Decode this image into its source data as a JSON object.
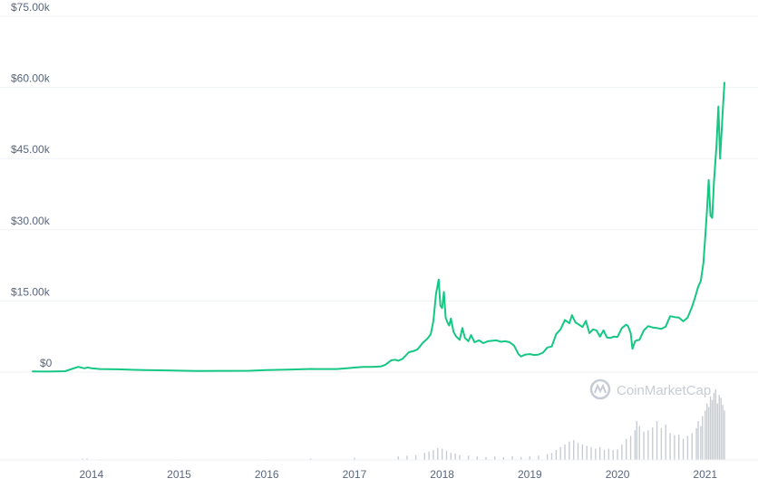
{
  "chart_data": {
    "type": "line",
    "yaxis": {
      "min": 0,
      "max": 75000,
      "ticks": [
        {
          "value": 0,
          "label": "$0"
        },
        {
          "value": 15000,
          "label": "$15.00k"
        },
        {
          "value": 30000,
          "label": "$30.00k"
        },
        {
          "value": 45000,
          "label": "$45.00k"
        },
        {
          "value": 60000,
          "label": "$60.00k"
        },
        {
          "value": 75000,
          "label": "$75.00k"
        }
      ]
    },
    "xaxis": {
      "min": 2013.33,
      "max": 2021.23,
      "ticks": [
        {
          "value": 2014,
          "label": "2014"
        },
        {
          "value": 2015,
          "label": "2015"
        },
        {
          "value": 2016,
          "label": "2016"
        },
        {
          "value": 2017,
          "label": "2017"
        },
        {
          "value": 2018,
          "label": "2018"
        },
        {
          "value": 2019,
          "label": "2019"
        },
        {
          "value": 2020,
          "label": "2020"
        },
        {
          "value": 2021,
          "label": "2021"
        }
      ]
    },
    "grid": true,
    "line_color": "#16c784",
    "series": [
      {
        "x": [
          2013.33,
          2013.5,
          2013.7,
          2013.85,
          2013.92,
          2013.96,
          2014.0,
          2014.1,
          2014.3,
          2014.45,
          2014.6,
          2014.8,
          2015.0,
          2015.2,
          2015.5,
          2015.8,
          2016.0,
          2016.3,
          2016.5,
          2016.6,
          2016.8,
          2017.0,
          2017.1,
          2017.2,
          2017.3,
          2017.35,
          2017.42,
          2017.47,
          2017.5,
          2017.55,
          2017.62,
          2017.67,
          2017.72,
          2017.78,
          2017.83,
          2017.87,
          2017.9,
          2017.93,
          2017.96,
          2017.98,
          2018.0,
          2018.02,
          2018.04,
          2018.06,
          2018.08,
          2018.1,
          2018.13,
          2018.16,
          2018.2,
          2018.23,
          2018.26,
          2018.3,
          2018.33,
          2018.37,
          2018.42,
          2018.47,
          2018.52,
          2018.57,
          2018.62,
          2018.67,
          2018.72,
          2018.77,
          2018.82,
          2018.87,
          2018.9,
          2018.95,
          2019.0,
          2019.05,
          2019.1,
          2019.15,
          2019.2,
          2019.25,
          2019.3,
          2019.35,
          2019.4,
          2019.45,
          2019.48,
          2019.52,
          2019.56,
          2019.6,
          2019.64,
          2019.68,
          2019.72,
          2019.76,
          2019.8,
          2019.84,
          2019.88,
          2019.92,
          2019.96,
          2020.0,
          2020.05,
          2020.1,
          2020.12,
          2020.15,
          2020.17,
          2020.2,
          2020.22,
          2020.25,
          2020.3,
          2020.35,
          2020.4,
          2020.45,
          2020.5,
          2020.55,
          2020.6,
          2020.65,
          2020.7,
          2020.75,
          2020.8,
          2020.85,
          2020.88,
          2020.92,
          2020.95,
          2020.98,
          2021.0,
          2021.02,
          2021.04,
          2021.06,
          2021.08,
          2021.1,
          2021.13,
          2021.15,
          2021.17,
          2021.2,
          2021.22
        ],
        "y": [
          130,
          120,
          200,
          1100,
          800,
          1000,
          800,
          650,
          600,
          500,
          420,
          380,
          300,
          240,
          260,
          290,
          430,
          550,
          670,
          650,
          650,
          960,
          1100,
          1100,
          1200,
          1500,
          2500,
          2600,
          2400,
          2800,
          4200,
          4400,
          4800,
          6200,
          7000,
          8000,
          10800,
          16500,
          19500,
          14000,
          13500,
          16900,
          11500,
          10500,
          9800,
          11300,
          8500,
          7500,
          6800,
          9300,
          7200,
          6500,
          7800,
          6300,
          6700,
          6100,
          6500,
          6600,
          6700,
          6400,
          6500,
          6300,
          5600,
          3800,
          3300,
          3700,
          3800,
          3600,
          3700,
          4100,
          5200,
          5400,
          8000,
          9000,
          11000,
          10300,
          12000,
          10500,
          10000,
          9500,
          10800,
          8200,
          9000,
          8800,
          7500,
          8800,
          7300,
          7200,
          7500,
          7400,
          9300,
          10000,
          9700,
          8200,
          4900,
          6500,
          6700,
          6800,
          8800,
          9700,
          9400,
          9300,
          9100,
          9600,
          11800,
          11600,
          11500,
          10700,
          11500,
          13800,
          15500,
          18000,
          19200,
          23000,
          28500,
          34000,
          40500,
          33000,
          32500,
          40000,
          48000,
          56000,
          45000,
          55000,
          61000
        ]
      }
    ],
    "volume": {
      "x": [
        2013.9,
        2013.95,
        2014.1,
        2015.0,
        2016.0,
        2016.5,
        2017.0,
        2017.5,
        2017.6,
        2017.7,
        2017.8,
        2017.85,
        2017.9,
        2017.95,
        2018.0,
        2018.05,
        2018.1,
        2018.15,
        2018.2,
        2018.3,
        2018.4,
        2018.5,
        2018.6,
        2018.7,
        2018.8,
        2018.9,
        2019.0,
        2019.1,
        2019.2,
        2019.25,
        2019.3,
        2019.35,
        2019.4,
        2019.45,
        2019.5,
        2019.55,
        2019.6,
        2019.65,
        2019.7,
        2019.75,
        2019.8,
        2019.85,
        2019.9,
        2019.95,
        2020.0,
        2020.05,
        2020.1,
        2020.15,
        2020.2,
        2020.22,
        2020.25,
        2020.3,
        2020.35,
        2020.4,
        2020.45,
        2020.5,
        2020.55,
        2020.6,
        2020.65,
        2020.7,
        2020.75,
        2020.8,
        2020.85,
        2020.9,
        2020.92,
        2020.95,
        2020.97,
        2021.0,
        2021.02,
        2021.04,
        2021.06,
        2021.08,
        2021.1,
        2021.12,
        2021.14,
        2021.16,
        2021.18,
        2021.2,
        2021.22
      ],
      "values": [
        0.02,
        0.02,
        0.01,
        0.01,
        0.01,
        0.02,
        0.03,
        0.05,
        0.06,
        0.07,
        0.1,
        0.12,
        0.14,
        0.17,
        0.16,
        0.13,
        0.1,
        0.09,
        0.07,
        0.06,
        0.05,
        0.04,
        0.05,
        0.04,
        0.05,
        0.04,
        0.05,
        0.06,
        0.08,
        0.1,
        0.14,
        0.18,
        0.22,
        0.26,
        0.28,
        0.24,
        0.22,
        0.2,
        0.18,
        0.16,
        0.18,
        0.14,
        0.16,
        0.14,
        0.15,
        0.22,
        0.3,
        0.34,
        0.42,
        0.55,
        0.48,
        0.4,
        0.42,
        0.46,
        0.55,
        0.45,
        0.5,
        0.38,
        0.35,
        0.36,
        0.3,
        0.34,
        0.38,
        0.45,
        0.55,
        0.48,
        0.62,
        0.7,
        0.8,
        0.75,
        0.9,
        0.85,
        0.95,
        1.0,
        0.8,
        0.92,
        0.88,
        0.78,
        0.7
      ]
    }
  },
  "watermark": {
    "text": "CoinMarketCap"
  }
}
